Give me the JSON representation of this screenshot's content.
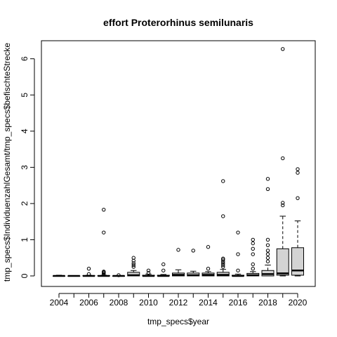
{
  "chart_data": {
    "type": "boxplot",
    "title": "effort Proterorhinus semilunaris",
    "xlabel": "tmp_specs$year",
    "ylabel": "tmp_specs$IndividuenzahlGesamt/tmp_specs$befischteStrecke",
    "categories": [
      "2004",
      "2005",
      "2006",
      "2007",
      "2008",
      "2009",
      "2010",
      "2011",
      "2012",
      "2013",
      "2014",
      "2015",
      "2016",
      "2017",
      "2018",
      "2019",
      "2020"
    ],
    "x_tick_labels": [
      "2004",
      "2006",
      "2008",
      "2010",
      "2012",
      "2014",
      "2016",
      "2018",
      "2020"
    ],
    "y_ticks": [
      0,
      1,
      2,
      3,
      4,
      5,
      6
    ],
    "ylim": [
      -0.2,
      6.5
    ],
    "grid": false,
    "box_fill": "#d3d3d3",
    "boxes": [
      {
        "year": "2004",
        "q1": 0.0,
        "median": 0.0,
        "q3": 0.0,
        "whisker_low": 0.0,
        "whisker_high": 0.02,
        "outliers": []
      },
      {
        "year": "2005",
        "q1": 0.0,
        "median": 0.0,
        "q3": 0.0,
        "whisker_low": 0.0,
        "whisker_high": 0.0,
        "outliers": []
      },
      {
        "year": "2006",
        "q1": 0.0,
        "median": 0.0,
        "q3": 0.01,
        "whisker_low": 0.0,
        "whisker_high": 0.02,
        "outliers": [
          0.05,
          0.2
        ]
      },
      {
        "year": "2007",
        "q1": 0.0,
        "median": 0.0,
        "q3": 0.01,
        "whisker_low": 0.0,
        "whisker_high": 0.02,
        "outliers": [
          0.05,
          0.08,
          0.1,
          0.12,
          1.2,
          1.83
        ]
      },
      {
        "year": "2008",
        "q1": 0.0,
        "median": 0.0,
        "q3": 0.0,
        "whisker_low": 0.0,
        "whisker_high": 0.0,
        "outliers": [
          0.02
        ]
      },
      {
        "year": "2009",
        "q1": 0.0,
        "median": 0.02,
        "q3": 0.1,
        "whisker_low": 0.0,
        "whisker_high": 0.15,
        "outliers": [
          0.25,
          0.3,
          0.35,
          0.42,
          0.5
        ]
      },
      {
        "year": "2010",
        "q1": 0.0,
        "median": 0.0,
        "q3": 0.02,
        "whisker_low": 0.0,
        "whisker_high": 0.05,
        "outliers": [
          0.08,
          0.15
        ]
      },
      {
        "year": "2011",
        "q1": 0.0,
        "median": 0.0,
        "q3": 0.02,
        "whisker_low": 0.0,
        "whisker_high": 0.04,
        "outliers": [
          0.15,
          0.32
        ]
      },
      {
        "year": "2012",
        "q1": 0.0,
        "median": 0.03,
        "q3": 0.08,
        "whisker_low": 0.0,
        "whisker_high": 0.17,
        "outliers": [
          0.72
        ]
      },
      {
        "year": "2013",
        "q1": 0.0,
        "median": 0.02,
        "q3": 0.08,
        "whisker_low": 0.0,
        "whisker_high": 0.13,
        "outliers": [
          0.7
        ]
      },
      {
        "year": "2014",
        "q1": 0.0,
        "median": 0.03,
        "q3": 0.08,
        "whisker_low": 0.0,
        "whisker_high": 0.12,
        "outliers": [
          0.2,
          0.8
        ]
      },
      {
        "year": "2015",
        "q1": 0.0,
        "median": 0.03,
        "q3": 0.1,
        "whisker_low": 0.0,
        "whisker_high": 0.18,
        "outliers": [
          0.25,
          0.3,
          0.35,
          0.4,
          0.45,
          0.48,
          1.65,
          2.62
        ]
      },
      {
        "year": "2016",
        "q1": 0.0,
        "median": 0.0,
        "q3": 0.02,
        "whisker_low": 0.0,
        "whisker_high": 0.05,
        "outliers": [
          0.15,
          0.6,
          1.2
        ]
      },
      {
        "year": "2017",
        "q1": 0.0,
        "median": 0.02,
        "q3": 0.07,
        "whisker_low": 0.0,
        "whisker_high": 0.12,
        "outliers": [
          0.2,
          0.32,
          0.6,
          0.75,
          0.9,
          1.0
        ]
      },
      {
        "year": "2018",
        "q1": 0.0,
        "median": 0.05,
        "q3": 0.15,
        "whisker_low": 0.0,
        "whisker_high": 0.3,
        "outliers": [
          0.4,
          0.5,
          0.6,
          0.7,
          0.85,
          1.0,
          2.4,
          2.68
        ]
      },
      {
        "year": "2019",
        "q1": 0.02,
        "median": 0.07,
        "q3": 0.75,
        "whisker_low": 0.0,
        "whisker_high": 1.65,
        "outliers": [
          1.95,
          2.02,
          3.25,
          6.27
        ]
      },
      {
        "year": "2020",
        "q1": 0.02,
        "median": 0.15,
        "q3": 0.78,
        "whisker_low": 0.0,
        "whisker_high": 1.52,
        "outliers": [
          2.15,
          2.85,
          2.95
        ]
      }
    ]
  }
}
